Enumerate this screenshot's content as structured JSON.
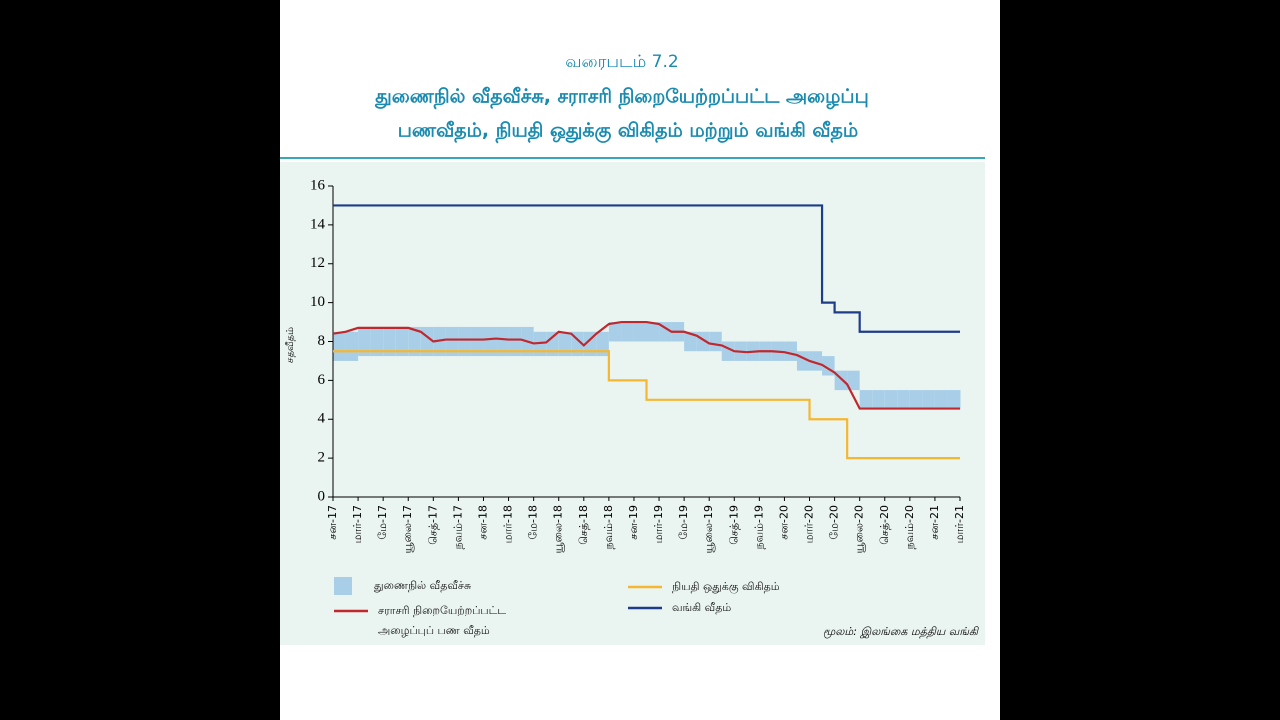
{
  "chart_data": {
    "type": "line",
    "figure_label": "வரைபடம் 7.2",
    "title": [
      "துணைநில் வீதவீச்சு, சராசரி நிறையேற்றப்பட்ட அழைப்பு",
      "பணவீதம், நியதி ஒதுக்கு விகிதம் மற்றும் வங்கி வீதம்"
    ],
    "y_label": "சதவீதம்",
    "source": "மூலம்: இலங்கை மத்திய வங்கி",
    "categories": [
      "சன-17",
      null,
      "மார்-17",
      null,
      "மே-17",
      null,
      "யூலை-17",
      null,
      "செத்-17",
      null,
      "நவம்-17",
      null,
      "சன-18",
      null,
      "மார்-18",
      null,
      "மே-18",
      null,
      "யூலை-18",
      null,
      "செத்-18",
      null,
      "நவம்-18",
      null,
      "சன-19",
      null,
      "மார்-19",
      null,
      "மே-19",
      null,
      "யூலை-19",
      null,
      "செத்-19",
      null,
      "நவம்-19",
      null,
      "சன-20",
      null,
      "மார்-20",
      null,
      "மே-20",
      null,
      "யூலை-20",
      null,
      "செத்-20",
      null,
      "நவம்-20",
      null,
      "சன-21",
      null,
      "மார்-21"
    ],
    "ylim": [
      0,
      16
    ],
    "yticks": [
      0,
      2,
      4,
      6,
      8,
      10,
      12,
      14,
      16
    ],
    "grid": false,
    "band": {
      "name": "துணைநில் வீதவீச்சு",
      "color": "#a9cfe8",
      "lower": [
        7.0,
        7.0,
        7.25,
        7.25,
        7.25,
        7.25,
        7.25,
        7.25,
        7.25,
        7.25,
        7.25,
        7.25,
        7.25,
        7.25,
        7.25,
        7.25,
        7.25,
        7.25,
        7.25,
        7.25,
        7.25,
        7.25,
        8.0,
        8.0,
        8.0,
        8.0,
        8.0,
        8.0,
        7.5,
        7.5,
        7.5,
        7.0,
        7.0,
        7.0,
        7.0,
        7.0,
        7.0,
        6.5,
        6.5,
        6.25,
        5.5,
        5.5,
        4.5,
        4.5,
        4.5,
        4.5,
        4.5,
        4.5,
        4.5,
        4.5,
        4.5
      ],
      "upper": [
        8.5,
        8.5,
        8.75,
        8.75,
        8.75,
        8.75,
        8.75,
        8.75,
        8.75,
        8.75,
        8.75,
        8.75,
        8.75,
        8.75,
        8.75,
        8.75,
        8.5,
        8.5,
        8.5,
        8.5,
        8.5,
        8.5,
        9.0,
        9.0,
        9.0,
        9.0,
        9.0,
        9.0,
        8.5,
        8.5,
        8.5,
        8.0,
        8.0,
        8.0,
        8.0,
        8.0,
        8.0,
        7.5,
        7.5,
        7.25,
        6.5,
        6.5,
        5.5,
        5.5,
        5.5,
        5.5,
        5.5,
        5.5,
        5.5,
        5.5,
        5.5
      ]
    },
    "series": [
      {
        "name": "சராசரி நிறையேற்றப்பட்ட அழைப்புப் பண வீதம்",
        "color": "#c0282d",
        "step": false,
        "values": [
          8.4,
          8.5,
          8.7,
          8.7,
          8.7,
          8.7,
          8.7,
          8.5,
          8.0,
          8.1,
          8.1,
          8.1,
          8.1,
          8.15,
          8.1,
          8.1,
          7.9,
          7.95,
          8.5,
          8.4,
          7.8,
          8.4,
          8.9,
          9.0,
          9.0,
          9.0,
          8.9,
          8.5,
          8.5,
          8.3,
          7.9,
          7.8,
          7.5,
          7.45,
          7.5,
          7.5,
          7.45,
          7.3,
          7.0,
          6.8,
          6.4,
          5.8,
          4.55,
          4.55,
          4.55,
          4.55,
          4.55,
          4.55,
          4.55,
          4.55,
          4.55
        ]
      },
      {
        "name": "நியதி ஒதுக்கு விகிதம்",
        "color": "#f5b731",
        "step": true,
        "values": [
          7.5,
          7.5,
          7.5,
          7.5,
          7.5,
          7.5,
          7.5,
          7.5,
          7.5,
          7.5,
          7.5,
          7.5,
          7.5,
          7.5,
          7.5,
          7.5,
          7.5,
          7.5,
          7.5,
          7.5,
          7.5,
          7.5,
          6,
          6,
          6,
          5,
          5,
          5,
          5,
          5,
          5,
          5,
          5,
          5,
          5,
          5,
          5,
          5,
          4,
          4,
          4,
          2,
          2,
          2,
          2,
          2,
          2,
          2,
          2,
          2,
          2
        ]
      },
      {
        "name": "வங்கி வீதம்",
        "color": "#1f3c88",
        "step": true,
        "values": [
          15,
          15,
          15,
          15,
          15,
          15,
          15,
          15,
          15,
          15,
          15,
          15,
          15,
          15,
          15,
          15,
          15,
          15,
          15,
          15,
          15,
          15,
          15,
          15,
          15,
          15,
          15,
          15,
          15,
          15,
          15,
          15,
          15,
          15,
          15,
          15,
          15,
          15,
          15,
          10,
          9.5,
          9.5,
          8.5,
          8.5,
          8.5,
          8.5,
          8.5,
          8.5,
          8.5,
          8.5,
          8.5
        ]
      }
    ]
  }
}
